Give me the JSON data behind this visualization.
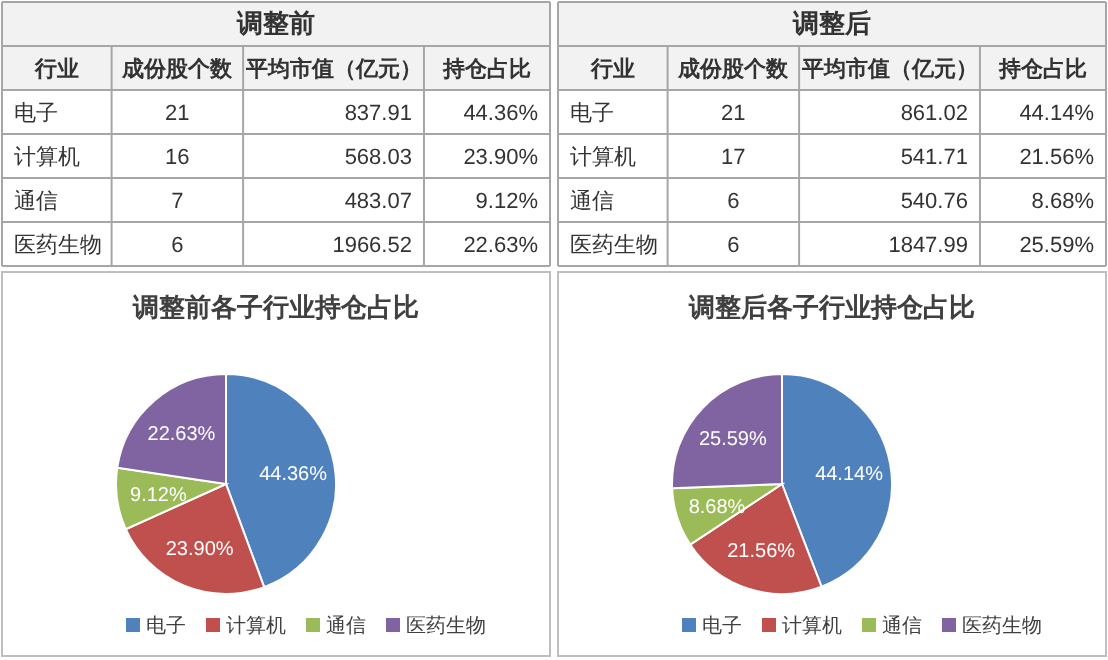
{
  "chart_data": [
    {
      "type": "other",
      "title": "调整前",
      "ylabel": "行业",
      "categories": [
        "电子",
        "计算机",
        "通信",
        "医药生物"
      ],
      "data_labels": true,
      "series": [
        {
          "name": "成份股个数",
          "values": [
            21,
            16,
            7,
            6
          ]
        },
        {
          "name": "平均市值（亿元）",
          "values": [
            837.91,
            568.03,
            483.07,
            1966.52
          ]
        },
        {
          "name": "持仓占比",
          "values": [
            44.36,
            23.9,
            9.12,
            22.63
          ],
          "value_labels": [
            "44.36%",
            "23.90%",
            "9.12%",
            "22.63%"
          ]
        }
      ]
    },
    {
      "type": "other",
      "title": "调整后",
      "ylabel": "行业",
      "categories": [
        "电子",
        "计算机",
        "通信",
        "医药生物"
      ],
      "data_labels": true,
      "series": [
        {
          "name": "成份股个数",
          "values": [
            21,
            17,
            6,
            6
          ]
        },
        {
          "name": "平均市值（亿元）",
          "values": [
            861.02,
            541.71,
            540.76,
            1847.99
          ]
        },
        {
          "name": "持仓占比",
          "values": [
            44.14,
            21.56,
            8.68,
            25.59
          ],
          "value_labels": [
            "44.14%",
            "21.56%",
            "8.68%",
            "25.59%"
          ]
        }
      ]
    },
    {
      "type": "pie",
      "title": "调整前各子行业持仓占比",
      "categories": [
        "电子",
        "计算机",
        "通信",
        "医药生物"
      ],
      "values": [
        44.36,
        23.9,
        9.12,
        22.63
      ],
      "value_labels": [
        "44.36%",
        "23.90%",
        "9.12%",
        "22.63%"
      ],
      "colors": [
        "#4f81bd",
        "#c0504d",
        "#9bbb59",
        "#8064a2"
      ],
      "legend": "bottom"
    },
    {
      "type": "pie",
      "title": "调整后各子行业持仓占比",
      "categories": [
        "电子",
        "计算机",
        "通信",
        "医药生物"
      ],
      "values": [
        44.14,
        21.56,
        8.68,
        25.59
      ],
      "value_labels": [
        "44.14%",
        "21.56%",
        "8.68%",
        "25.59%"
      ],
      "colors": [
        "#4f81bd",
        "#c0504d",
        "#9bbb59",
        "#8064a2"
      ],
      "legend": "bottom"
    }
  ]
}
